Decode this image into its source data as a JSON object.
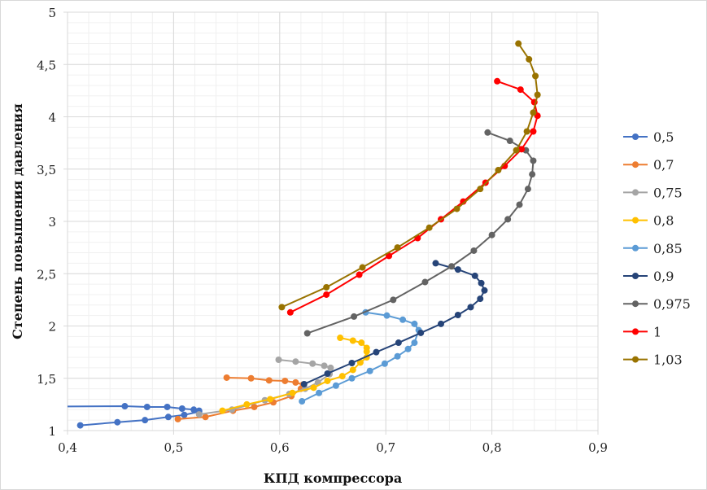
{
  "chart_data": {
    "type": "line",
    "title": "",
    "xlabel": "КПД компрессора",
    "ylabel": "Степень повышения давления",
    "xlim": [
      0.4,
      0.9
    ],
    "ylim": [
      1,
      5
    ],
    "xticks": [
      "0,4",
      "0,5",
      "0,6",
      "0,7",
      "0,8",
      "0,9"
    ],
    "xtick_values": [
      0.4,
      0.5,
      0.6,
      0.7,
      0.8,
      0.9
    ],
    "yticks": [
      "1",
      "1,5",
      "2",
      "2,5",
      "3",
      "3,5",
      "4",
      "4,5",
      "5"
    ],
    "ytick_values": [
      1,
      1.5,
      2,
      2.5,
      3,
      3.5,
      4,
      4.5,
      5
    ],
    "grid": true,
    "legend_position": "right",
    "series": [
      {
        "name": "0,5",
        "color": "#4472C4",
        "points": [
          [
            0.412,
            1.05
          ],
          [
            0.447,
            1.08
          ],
          [
            0.473,
            1.1
          ],
          [
            0.495,
            1.13
          ],
          [
            0.51,
            1.15
          ],
          [
            0.524,
            1.18
          ],
          [
            0.524,
            1.19
          ],
          [
            0.519,
            1.2
          ],
          [
            0.508,
            1.21
          ],
          [
            0.494,
            1.226
          ],
          [
            0.475,
            1.226
          ],
          [
            0.454,
            1.233
          ],
          [
            0.3,
            1.226
          ]
        ]
      },
      {
        "name": "0,7",
        "color": "#ED7D31",
        "points": [
          [
            0.504,
            1.11
          ],
          [
            0.53,
            1.13
          ],
          [
            0.556,
            1.19
          ],
          [
            0.576,
            1.226
          ],
          [
            0.594,
            1.27
          ],
          [
            0.611,
            1.33
          ],
          [
            0.62,
            1.4
          ],
          [
            0.622,
            1.44
          ],
          [
            0.615,
            1.46
          ],
          [
            0.605,
            1.475
          ],
          [
            0.59,
            1.48
          ],
          [
            0.573,
            1.5
          ],
          [
            0.55,
            1.506
          ]
        ]
      },
      {
        "name": "0,75",
        "color": "#A5A5A5",
        "points": [
          [
            0.524,
            1.155
          ],
          [
            0.555,
            1.2
          ],
          [
            0.586,
            1.29
          ],
          [
            0.609,
            1.35
          ],
          [
            0.624,
            1.4
          ],
          [
            0.636,
            1.46
          ],
          [
            0.647,
            1.54
          ],
          [
            0.648,
            1.6
          ],
          [
            0.642,
            1.62
          ],
          [
            0.631,
            1.64
          ],
          [
            0.615,
            1.66
          ],
          [
            0.599,
            1.677
          ]
        ]
      },
      {
        "name": "0,8",
        "color": "#FFC000",
        "points": [
          [
            0.546,
            1.19
          ],
          [
            0.569,
            1.25
          ],
          [
            0.591,
            1.3
          ],
          [
            0.612,
            1.36
          ],
          [
            0.632,
            1.41
          ],
          [
            0.645,
            1.475
          ],
          [
            0.659,
            1.52
          ],
          [
            0.669,
            1.58
          ],
          [
            0.676,
            1.65
          ],
          [
            0.682,
            1.7
          ],
          [
            0.682,
            1.755
          ],
          [
            0.682,
            1.79
          ],
          [
            0.677,
            1.84
          ],
          [
            0.669,
            1.86
          ],
          [
            0.657,
            1.887
          ]
        ]
      },
      {
        "name": "0,85",
        "color": "#5B9BD5",
        "points": [
          [
            0.621,
            1.28
          ],
          [
            0.637,
            1.36
          ],
          [
            0.653,
            1.43
          ],
          [
            0.668,
            1.5
          ],
          [
            0.685,
            1.57
          ],
          [
            0.699,
            1.64
          ],
          [
            0.711,
            1.71
          ],
          [
            0.721,
            1.78
          ],
          [
            0.727,
            1.84
          ],
          [
            0.731,
            1.96
          ],
          [
            0.727,
            2.02
          ],
          [
            0.716,
            2.06
          ],
          [
            0.701,
            2.1
          ],
          [
            0.681,
            2.13
          ]
        ]
      },
      {
        "name": "0,9",
        "color": "#264478",
        "points": [
          [
            0.623,
            1.444
          ],
          [
            0.645,
            1.545
          ],
          [
            0.668,
            1.646
          ],
          [
            0.691,
            1.75
          ],
          [
            0.712,
            1.84
          ],
          [
            0.733,
            1.934
          ],
          [
            0.752,
            2.02
          ],
          [
            0.768,
            2.105
          ],
          [
            0.78,
            2.18
          ],
          [
            0.789,
            2.26
          ],
          [
            0.793,
            2.34
          ],
          [
            0.79,
            2.41
          ],
          [
            0.784,
            2.48
          ],
          [
            0.768,
            2.54
          ],
          [
            0.747,
            2.6
          ]
        ]
      },
      {
        "name": "0,975",
        "color": "#636363",
        "points": [
          [
            0.626,
            1.93
          ],
          [
            0.67,
            2.09
          ],
          [
            0.707,
            2.25
          ],
          [
            0.737,
            2.42
          ],
          [
            0.762,
            2.57
          ],
          [
            0.783,
            2.72
          ],
          [
            0.8,
            2.87
          ],
          [
            0.815,
            3.02
          ],
          [
            0.826,
            3.16
          ],
          [
            0.834,
            3.31
          ],
          [
            0.838,
            3.45
          ],
          [
            0.839,
            3.58
          ],
          [
            0.832,
            3.68
          ],
          [
            0.817,
            3.77
          ],
          [
            0.796,
            3.85
          ]
        ]
      },
      {
        "name": "1",
        "color": "#FF0000",
        "points": [
          [
            0.61,
            2.13
          ],
          [
            0.644,
            2.3
          ],
          [
            0.675,
            2.49
          ],
          [
            0.703,
            2.67
          ],
          [
            0.73,
            2.84
          ],
          [
            0.752,
            3.02
          ],
          [
            0.773,
            3.19
          ],
          [
            0.794,
            3.37
          ],
          [
            0.812,
            3.53
          ],
          [
            0.828,
            3.69
          ],
          [
            0.839,
            3.86
          ],
          [
            0.843,
            4.01
          ],
          [
            0.84,
            4.14
          ],
          [
            0.827,
            4.26
          ],
          [
            0.805,
            4.34
          ]
        ]
      },
      {
        "name": "1,03",
        "color": "#997300",
        "points": [
          [
            0.602,
            2.18
          ],
          [
            0.644,
            2.37
          ],
          [
            0.678,
            2.56
          ],
          [
            0.711,
            2.75
          ],
          [
            0.741,
            2.94
          ],
          [
            0.767,
            3.12
          ],
          [
            0.789,
            3.31
          ],
          [
            0.806,
            3.49
          ],
          [
            0.823,
            3.68
          ],
          [
            0.833,
            3.86
          ],
          [
            0.839,
            4.04
          ],
          [
            0.843,
            4.21
          ],
          [
            0.841,
            4.39
          ],
          [
            0.835,
            4.55
          ],
          [
            0.825,
            4.7
          ]
        ]
      }
    ]
  }
}
